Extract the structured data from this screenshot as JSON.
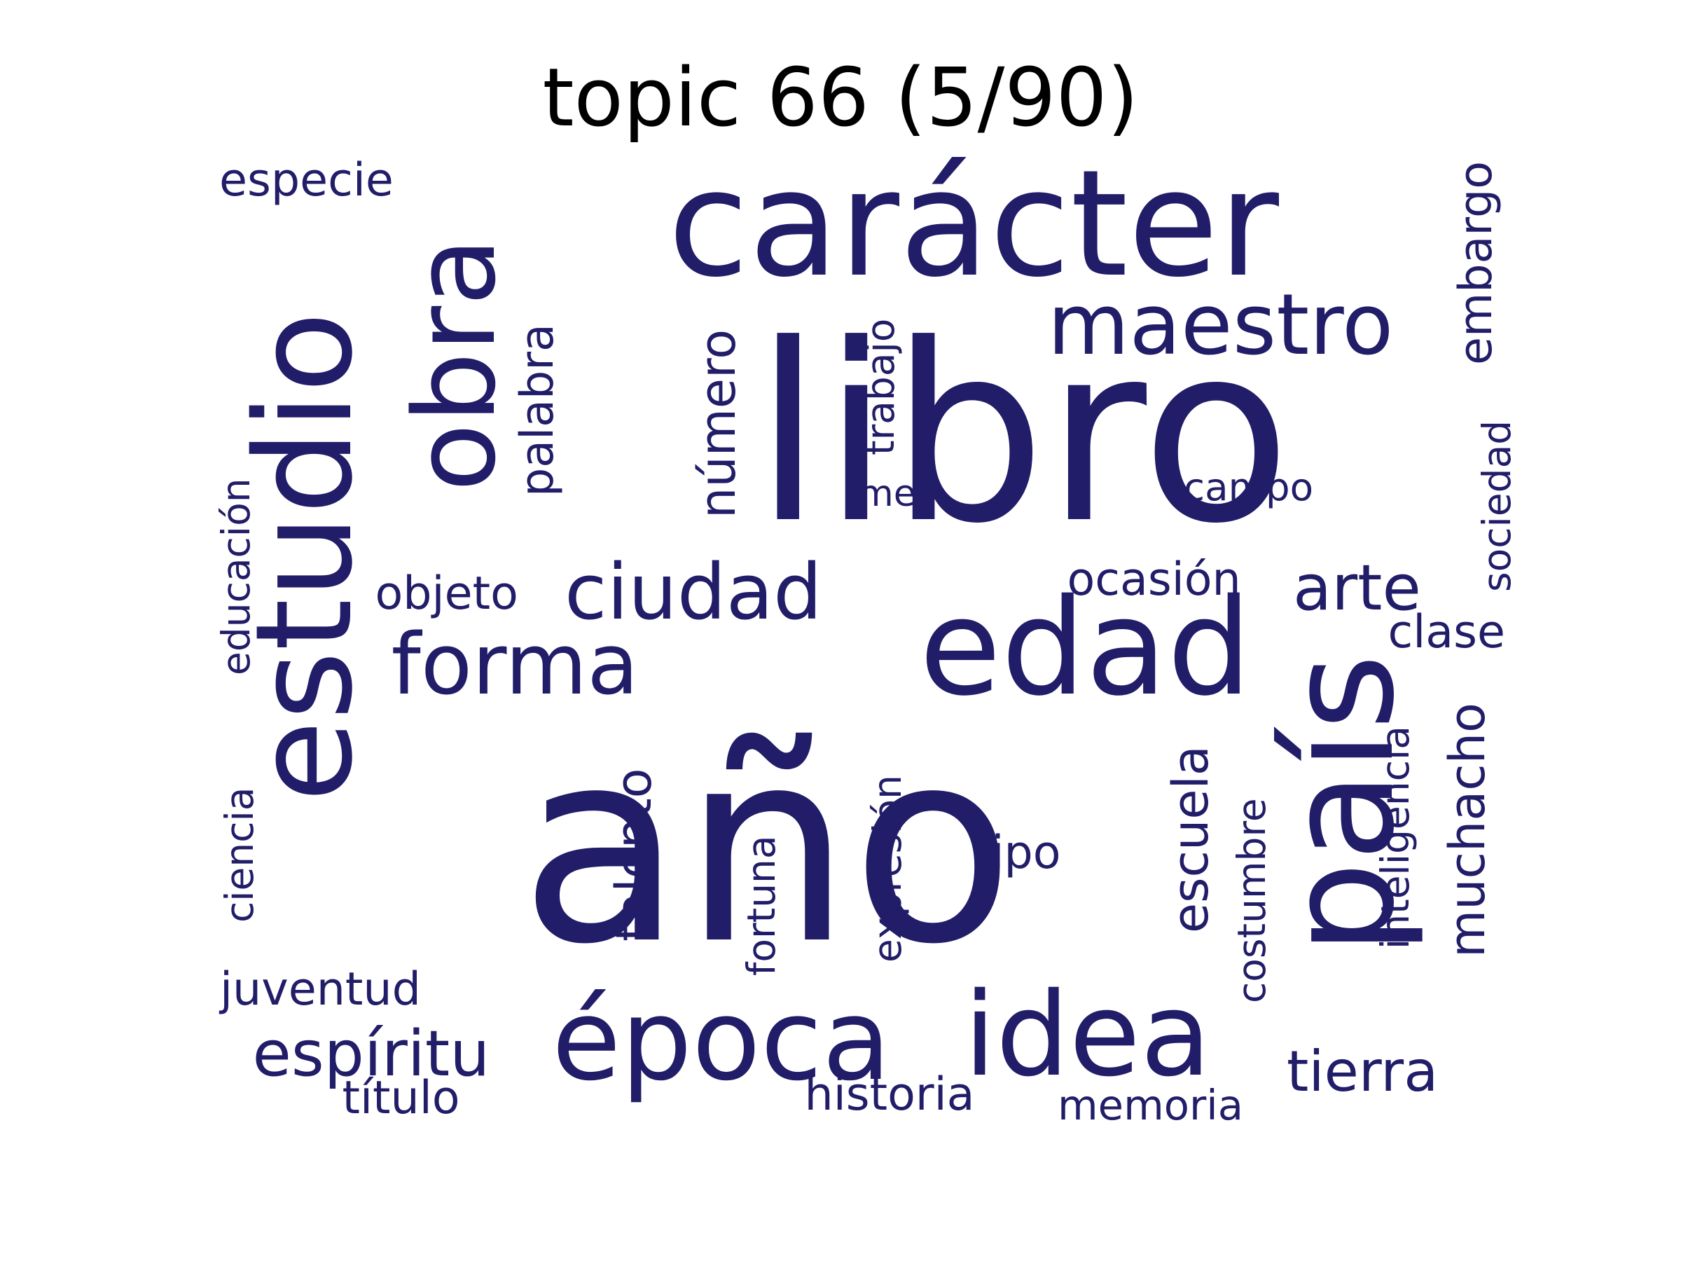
{
  "title": "topic 66 (5/90)",
  "colors": {
    "background": "#ffffff",
    "title": "#000000",
    "words": "#211d68"
  },
  "words": [
    {
      "text": "año",
      "orientation": "horizontal"
    },
    {
      "text": "libro",
      "orientation": "horizontal"
    },
    {
      "text": "carácter",
      "orientation": "horizontal"
    },
    {
      "text": "estudio",
      "orientation": "vertical"
    },
    {
      "text": "país",
      "orientation": "vertical"
    },
    {
      "text": "edad",
      "orientation": "horizontal"
    },
    {
      "text": "obra",
      "orientation": "vertical"
    },
    {
      "text": "idea",
      "orientation": "horizontal"
    },
    {
      "text": "época",
      "orientation": "horizontal"
    },
    {
      "text": "maestro",
      "orientation": "horizontal"
    },
    {
      "text": "forma",
      "orientation": "horizontal"
    },
    {
      "text": "ciudad",
      "orientation": "horizontal"
    },
    {
      "text": "palabra",
      "orientation": "vertical"
    },
    {
      "text": "número",
      "orientation": "vertical"
    },
    {
      "text": "talento",
      "orientation": "vertical"
    },
    {
      "text": "escuela",
      "orientation": "vertical"
    },
    {
      "text": "muchacho",
      "orientation": "vertical"
    },
    {
      "text": "embargo",
      "orientation": "vertical"
    },
    {
      "text": "espíritu",
      "orientation": "horizontal"
    },
    {
      "text": "tierra",
      "orientation": "horizontal"
    },
    {
      "text": "arte",
      "orientation": "horizontal"
    },
    {
      "text": "especie",
      "orientation": "horizontal"
    },
    {
      "text": "trabajo",
      "orientation": "vertical"
    },
    {
      "text": "mes",
      "orientation": "horizontal"
    },
    {
      "text": "campo",
      "orientation": "horizontal"
    },
    {
      "text": "sociedad",
      "orientation": "vertical"
    },
    {
      "text": "educación",
      "orientation": "vertical"
    },
    {
      "text": "objeto",
      "orientation": "horizontal"
    },
    {
      "text": "ocasión",
      "orientation": "horizontal"
    },
    {
      "text": "clase",
      "orientation": "horizontal"
    },
    {
      "text": "inteligencia",
      "orientation": "vertical"
    },
    {
      "text": "costumbre",
      "orientation": "vertical"
    },
    {
      "text": "ciencia",
      "orientation": "vertical"
    },
    {
      "text": "expresión",
      "orientation": "vertical"
    },
    {
      "text": "fortuna",
      "orientation": "vertical"
    },
    {
      "text": "tipo",
      "orientation": "horizontal"
    },
    {
      "text": "juventud",
      "orientation": "horizontal"
    },
    {
      "text": "título",
      "orientation": "horizontal"
    },
    {
      "text": "historia",
      "orientation": "horizontal"
    },
    {
      "text": "memoria",
      "orientation": "horizontal"
    }
  ]
}
